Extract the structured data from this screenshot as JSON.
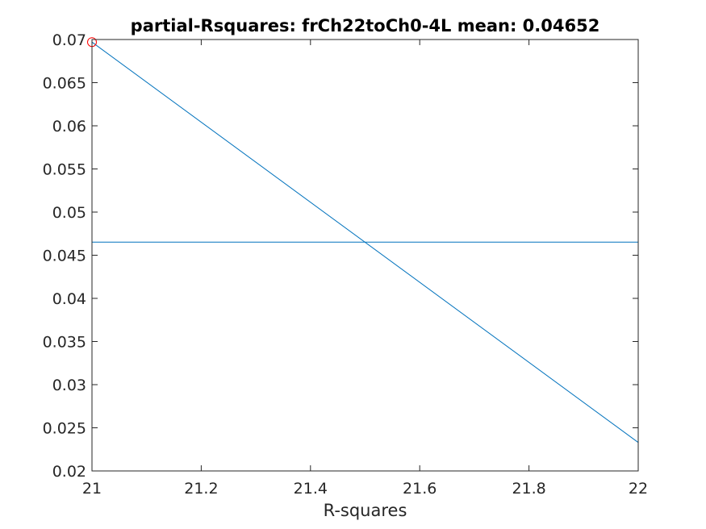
{
  "chart_data": {
    "type": "line",
    "title": "partial-Rsquares: frCh22toCh0-4L mean: 0.04652",
    "xlabel": "R-squares",
    "ylabel": "",
    "xlim": [
      21,
      22
    ],
    "ylim": [
      0.02,
      0.07
    ],
    "xticks": [
      21,
      21.2,
      21.4,
      21.6,
      21.8,
      22
    ],
    "xtick_labels": [
      "21",
      "21.2",
      "21.4",
      "21.6",
      "21.8",
      "22"
    ],
    "yticks": [
      0.02,
      0.025,
      0.03,
      0.035,
      0.04,
      0.045,
      0.05,
      0.055,
      0.06,
      0.065,
      0.07
    ],
    "ytick_labels": [
      "0.02",
      "0.025",
      "0.03",
      "0.035",
      "0.04",
      "0.045",
      "0.05",
      "0.055",
      "0.06",
      "0.065",
      "0.07"
    ],
    "grid": false,
    "series": [
      {
        "x": [
          21,
          22
        ],
        "y": [
          0.0697,
          0.0233
        ],
        "color": "#0072BD"
      }
    ],
    "mean_line": {
      "value": 0.04652,
      "color": "#0072BD"
    },
    "highlight_point": {
      "x": 21,
      "y": 0.0697,
      "color": "#FF0000",
      "marker": "circle"
    }
  }
}
